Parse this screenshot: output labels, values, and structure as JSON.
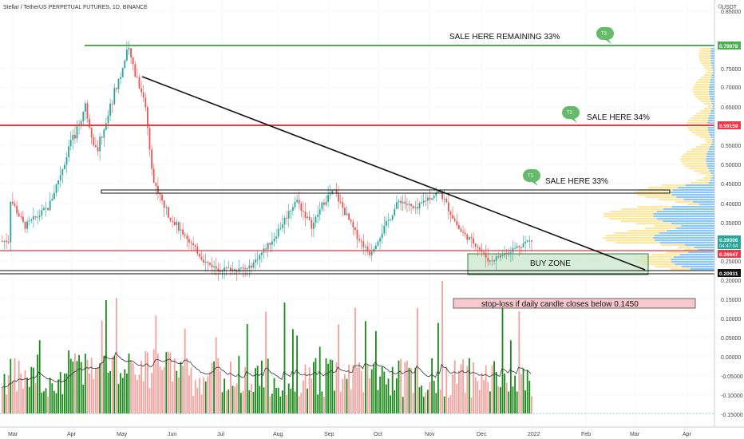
{
  "header": {
    "symbol_title": "Stellar / TetherUS PERPETUAL FUTURES, 1D, BINANCE"
  },
  "axis": {
    "currency": "USDT",
    "y_ticks": [
      "0.85000",
      "0.75000",
      "0.70000",
      "0.65000",
      "0.60000",
      "0.55000",
      "0.50000",
      "0.45000",
      "0.40000",
      "0.35000",
      "0.30000",
      "0.25000",
      "0.20000",
      "0.15000",
      "0.10000",
      "0.05000",
      "0.00000",
      "-0.05000",
      "-0.10000",
      "-0.15000"
    ],
    "x_ticks": [
      "Mar",
      "Apr",
      "May",
      "Jun",
      "Jul",
      "Aug",
      "Sep",
      "Oct",
      "Nov",
      "Dec",
      "2022",
      "Feb",
      "Mar",
      "Apr"
    ]
  },
  "price_tags": {
    "t3_level": "0.79978",
    "t2_level": "0.59159",
    "current_price": "0.29306",
    "countdown": "04:47:04",
    "support_level": "0.26647",
    "floor_level": "0.20931"
  },
  "annotations": {
    "t3_text": "SALE HERE REMAINING 33%",
    "t2_text": "SALE HERE 34%",
    "t1_text": "SALE HERE 33%",
    "t3_badge": "T3",
    "t2_badge": "T2",
    "t1_badge": "T1",
    "buy_zone": "BUY ZONE",
    "stop_loss": "stop-loss if daily candle closes below 0.1450"
  },
  "colors": {
    "up": "#26a69a",
    "down": "#ef5350",
    "target_green": "#4caf50",
    "resistance_red": "#f23645",
    "badge_green": "#66bb6a",
    "buy_zone_fill": "#c8e6c9",
    "stop_fill": "#f8c8cc",
    "vp_blue": "#64b5f6",
    "vp_yellow": "#ffd54f"
  },
  "chart_data": {
    "type": "line",
    "x": [
      "Mar",
      "Apr",
      "May",
      "Jun",
      "Jul",
      "Aug",
      "Sep",
      "Oct",
      "Nov",
      "Dec",
      "2022"
    ],
    "series": [
      {
        "values": [
          0.41,
          0.52,
          0.7,
          0.36,
          0.22,
          0.3,
          0.4,
          0.28,
          0.4,
          0.28,
          0.293
        ]
      }
    ],
    "levels": [
      0.79978,
      0.59159,
      0.42,
      0.26647,
      0.20931
    ],
    "ylim": [
      -0.17,
      0.88
    ]
  }
}
